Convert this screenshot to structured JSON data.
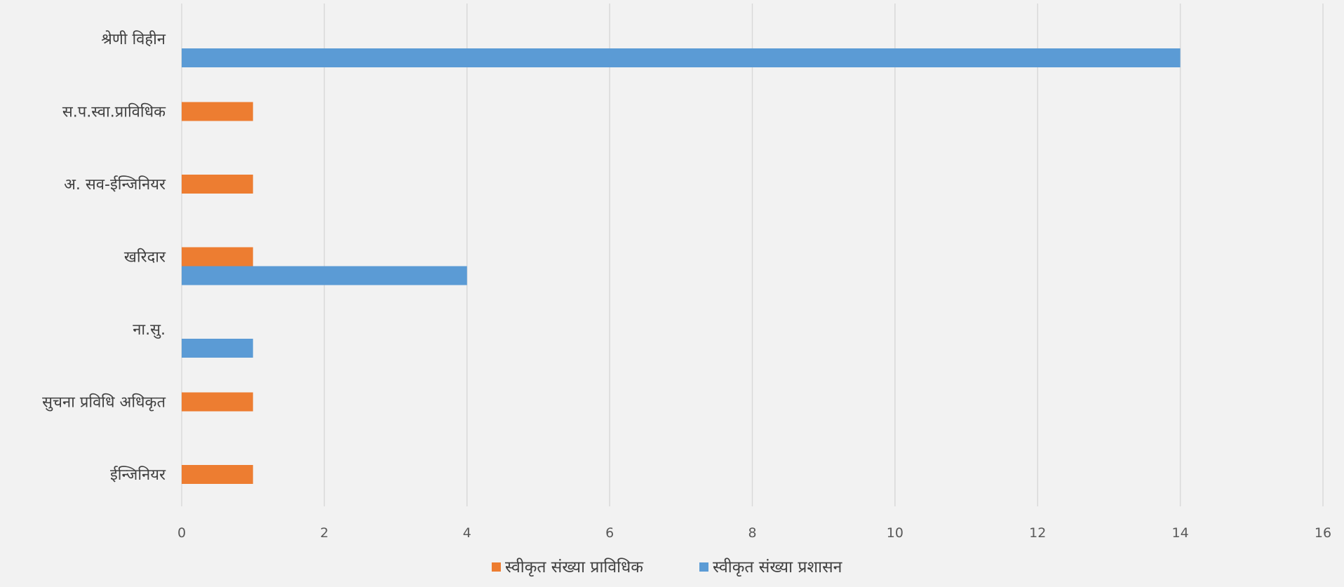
{
  "chart_data": {
    "type": "bar",
    "orientation": "horizontal",
    "categories": [
      "श्रेणी विहीन",
      "स.प.स्वा.प्राविधिक",
      "अ. सव-ईन्जिनियर",
      "खरिदार",
      "ना.सु.",
      "सुचना प्रविधि अधिकृत",
      "ईन्जिनियर"
    ],
    "series": [
      {
        "name": "स्वीकृत संख्या प्राविधिक",
        "color": "#ed7d31",
        "values": [
          0,
          1,
          1,
          1,
          0,
          1,
          1
        ]
      },
      {
        "name": "स्वीकृत संख्या प्रशासन",
        "color": "#5b9bd5",
        "values": [
          14,
          0,
          0,
          4,
          1,
          0,
          0
        ]
      }
    ],
    "xlim": [
      0,
      16
    ],
    "xticks": [
      "0",
      "2",
      "4",
      "6",
      "8",
      "10",
      "12",
      "14",
      "16"
    ],
    "grid": true,
    "legend_position": "bottom"
  }
}
